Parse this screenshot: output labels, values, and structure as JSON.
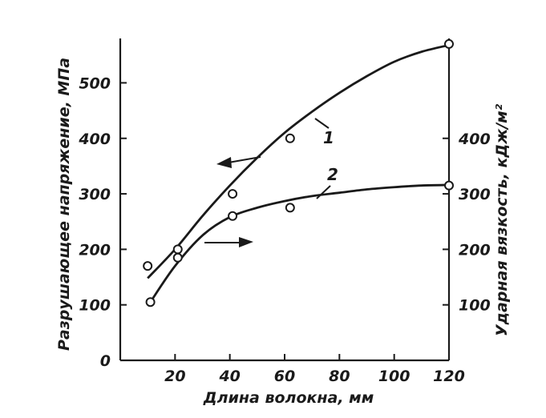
{
  "chart_data": {
    "type": "line",
    "xlabel": "Длина волокна, мм",
    "ylabel_left": "Разрушающее напряжение, МПа",
    "ylabel_right": "Ударная вязкость, кДж/м²",
    "x_ticks": [
      "20",
      "40",
      "60",
      "80",
      "100",
      "120"
    ],
    "y_left_ticks": [
      "0",
      "100",
      "200",
      "300",
      "400",
      "500"
    ],
    "y_right_ticks": [
      "100",
      "200",
      "300",
      "400"
    ],
    "xlim": [
      0,
      120
    ],
    "ylim_left": [
      0,
      580
    ],
    "ylim_right": [
      0,
      580
    ],
    "grid": false,
    "series": [
      {
        "name": "1",
        "axis": "left",
        "points": [
          [
            10,
            170
          ],
          [
            21,
            200
          ],
          [
            41,
            300
          ],
          [
            62,
            400
          ],
          [
            120,
            570
          ]
        ],
        "curve": [
          [
            10,
            148
          ],
          [
            20,
            200
          ],
          [
            30,
            260
          ],
          [
            40,
            315
          ],
          [
            50,
            365
          ],
          [
            60,
            410
          ],
          [
            70,
            448
          ],
          [
            80,
            482
          ],
          [
            90,
            512
          ],
          [
            100,
            538
          ],
          [
            110,
            556
          ],
          [
            120,
            568
          ]
        ]
      },
      {
        "name": "2",
        "axis": "right",
        "points": [
          [
            11,
            105
          ],
          [
            21,
            185
          ],
          [
            41,
            260
          ],
          [
            62,
            275
          ],
          [
            120,
            315
          ]
        ],
        "curve": [
          [
            11,
            105
          ],
          [
            20,
            170
          ],
          [
            30,
            225
          ],
          [
            40,
            258
          ],
          [
            50,
            275
          ],
          [
            60,
            287
          ],
          [
            70,
            296
          ],
          [
            80,
            302
          ],
          [
            90,
            308
          ],
          [
            100,
            312
          ],
          [
            110,
            315
          ],
          [
            120,
            316
          ]
        ]
      }
    ]
  }
}
